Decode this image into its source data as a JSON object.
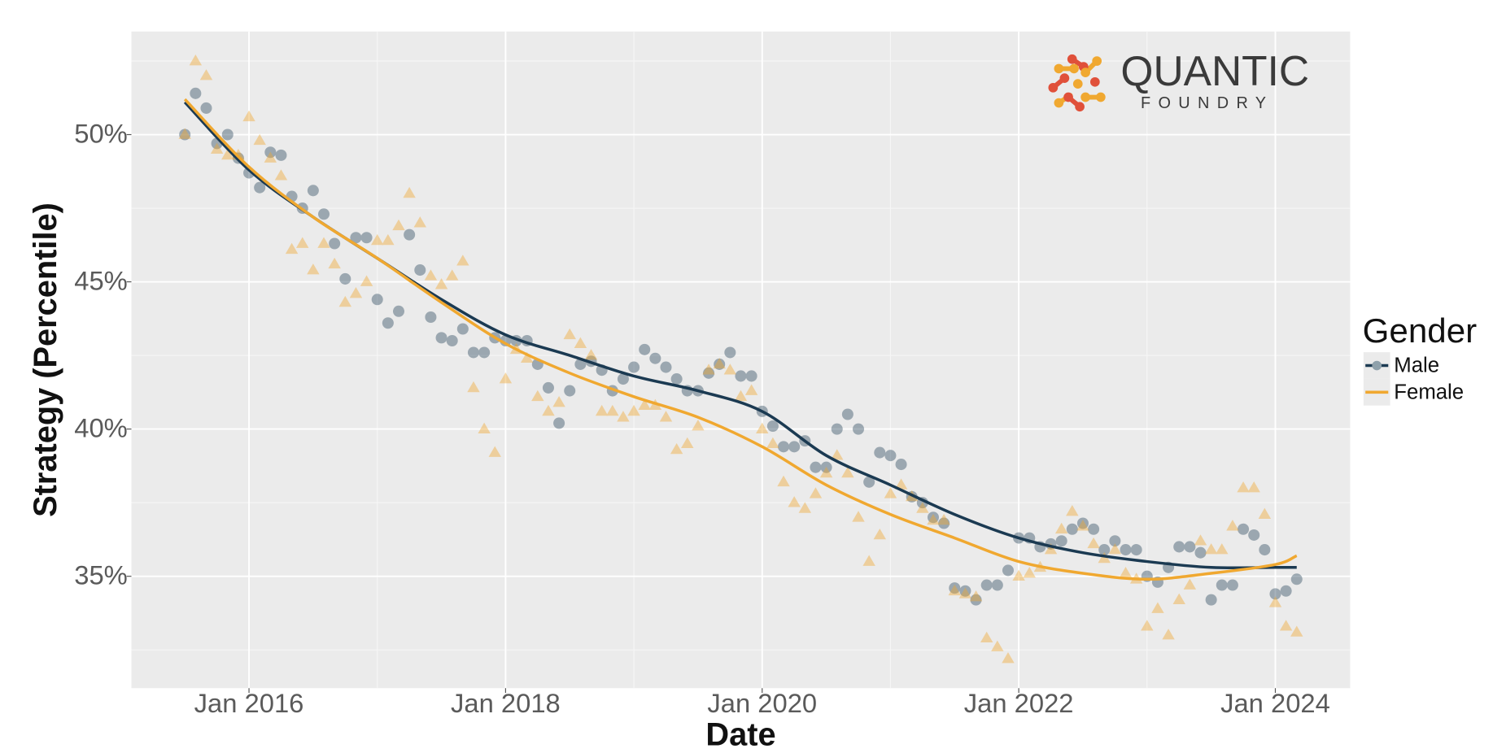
{
  "chart_data": {
    "type": "scatter",
    "x_label": "Date",
    "y_label": "Strategy (Percentile)",
    "legend_title": "Gender",
    "legend_position": "right",
    "grid": true,
    "logo": {
      "name": "QUANTIC",
      "tagline": "FOUNDRY"
    },
    "xlim": [
      "2015-02",
      "2024-08"
    ],
    "xticks": [
      {
        "value": "2016-01",
        "label": "Jan 2016"
      },
      {
        "value": "2018-01",
        "label": "Jan 2018"
      },
      {
        "value": "2020-01",
        "label": "Jan 2020"
      },
      {
        "value": "2022-01",
        "label": "Jan 2022"
      },
      {
        "value": "2024-01",
        "label": "Jan 2024"
      }
    ],
    "x_minor_ticks": [
      "2017-01",
      "2019-01",
      "2021-01",
      "2023-01"
    ],
    "ylim": [
      31.2,
      53.5
    ],
    "yticks": [
      {
        "value": 35,
        "label": "35%"
      },
      {
        "value": 40,
        "label": "40%"
      },
      {
        "value": 45,
        "label": "45%"
      },
      {
        "value": 50,
        "label": "50%"
      }
    ],
    "y_minor_ticks": [
      32.5,
      37.5,
      42.5,
      47.5,
      52.5
    ],
    "x": [
      "2015-07",
      "2015-08",
      "2015-09",
      "2015-10",
      "2015-11",
      "2015-12",
      "2016-01",
      "2016-02",
      "2016-03",
      "2016-04",
      "2016-05",
      "2016-06",
      "2016-07",
      "2016-08",
      "2016-09",
      "2016-10",
      "2016-11",
      "2016-12",
      "2017-01",
      "2017-02",
      "2017-03",
      "2017-04",
      "2017-05",
      "2017-06",
      "2017-07",
      "2017-08",
      "2017-09",
      "2017-10",
      "2017-11",
      "2017-12",
      "2018-01",
      "2018-02",
      "2018-03",
      "2018-04",
      "2018-05",
      "2018-06",
      "2018-07",
      "2018-08",
      "2018-09",
      "2018-10",
      "2018-11",
      "2018-12",
      "2019-01",
      "2019-02",
      "2019-03",
      "2019-04",
      "2019-05",
      "2019-06",
      "2019-07",
      "2019-08",
      "2019-09",
      "2019-10",
      "2019-11",
      "2019-12",
      "2020-01",
      "2020-02",
      "2020-03",
      "2020-04",
      "2020-05",
      "2020-06",
      "2020-07",
      "2020-08",
      "2020-09",
      "2020-10",
      "2020-11",
      "2020-12",
      "2021-01",
      "2021-02",
      "2021-03",
      "2021-04",
      "2021-05",
      "2021-06",
      "2021-07",
      "2021-08",
      "2021-09",
      "2021-10",
      "2021-11",
      "2021-12",
      "2022-01",
      "2022-02",
      "2022-03",
      "2022-04",
      "2022-05",
      "2022-06",
      "2022-07",
      "2022-08",
      "2022-09",
      "2022-10",
      "2022-11",
      "2022-12",
      "2023-01",
      "2023-02",
      "2023-03",
      "2023-04",
      "2023-05",
      "2023-06",
      "2023-07",
      "2023-08",
      "2023-09",
      "2023-10",
      "2023-11",
      "2023-12",
      "2024-01",
      "2024-02",
      "2024-03"
    ],
    "fit_x": [
      "2015-07",
      "2016-01",
      "2016-07",
      "2017-01",
      "2017-07",
      "2018-01",
      "2018-07",
      "2019-01",
      "2019-07",
      "2020-01",
      "2020-07",
      "2021-01",
      "2021-07",
      "2022-01",
      "2022-07",
      "2023-01",
      "2023-07",
      "2024-01",
      "2024-03"
    ],
    "series": [
      {
        "name": "Male",
        "color": "#1b3a52",
        "marker": "circle",
        "values": [
          50.0,
          51.4,
          50.9,
          49.7,
          50.0,
          49.2,
          48.7,
          48.2,
          49.4,
          49.3,
          47.9,
          47.5,
          48.1,
          47.3,
          46.3,
          45.1,
          46.5,
          46.5,
          44.4,
          43.6,
          44.0,
          46.6,
          45.4,
          43.8,
          43.1,
          43.0,
          43.4,
          42.6,
          42.6,
          43.1,
          43.0,
          43.0,
          43.0,
          42.2,
          41.4,
          40.2,
          41.3,
          42.2,
          42.3,
          42.0,
          41.3,
          41.7,
          42.1,
          42.7,
          42.4,
          42.1,
          41.7,
          41.3,
          41.3,
          41.9,
          42.2,
          42.6,
          41.8,
          41.8,
          40.6,
          40.1,
          39.4,
          39.4,
          39.6,
          38.7,
          38.7,
          40.0,
          40.5,
          40.0,
          38.2,
          39.2,
          39.1,
          38.8,
          37.7,
          37.5,
          37.0,
          36.8,
          34.6,
          34.5,
          34.2,
          34.7,
          34.7,
          35.2,
          36.3,
          36.3,
          36.0,
          36.1,
          36.2,
          36.6,
          36.8,
          36.6,
          35.9,
          36.2,
          35.9,
          35.9,
          35.0,
          34.8,
          35.3,
          36.0,
          36.0,
          35.8,
          34.2,
          34.7,
          34.7,
          36.6,
          36.4,
          35.9,
          34.4,
          34.5,
          34.9
        ],
        "fit_values": [
          51.1,
          48.8,
          47.2,
          45.8,
          44.4,
          43.2,
          42.5,
          41.8,
          41.3,
          40.6,
          39.1,
          38.1,
          37.1,
          36.3,
          35.8,
          35.5,
          35.3,
          35.3,
          35.3
        ]
      },
      {
        "name": "Female",
        "color": "#f0a830",
        "marker": "triangle",
        "values": [
          50.0,
          52.5,
          52.0,
          49.5,
          49.3,
          49.3,
          50.6,
          49.8,
          49.2,
          48.6,
          46.1,
          46.3,
          45.4,
          46.3,
          45.6,
          44.3,
          44.6,
          45.0,
          46.4,
          46.4,
          46.9,
          48.0,
          47.0,
          45.2,
          44.9,
          45.2,
          45.7,
          41.4,
          40.0,
          39.2,
          41.7,
          42.7,
          42.4,
          41.1,
          40.6,
          40.9,
          43.2,
          42.9,
          42.5,
          40.6,
          40.6,
          40.4,
          40.6,
          40.8,
          40.8,
          40.4,
          39.3,
          39.5,
          40.1,
          42.0,
          42.2,
          42.0,
          41.1,
          41.3,
          40.0,
          39.5,
          38.2,
          37.5,
          37.3,
          37.8,
          38.5,
          39.1,
          38.5,
          37.0,
          35.5,
          36.4,
          37.8,
          38.1,
          37.7,
          37.3,
          36.9,
          36.9,
          34.5,
          34.4,
          34.3,
          32.9,
          32.6,
          32.2,
          35.0,
          35.1,
          35.3,
          35.9,
          36.6,
          37.2,
          36.7,
          36.1,
          35.6,
          35.9,
          35.1,
          34.9,
          33.3,
          33.9,
          33.0,
          34.2,
          34.7,
          36.2,
          35.9,
          35.9,
          36.7,
          38.0,
          38.0,
          37.1,
          34.1,
          33.3,
          33.1
        ],
        "fit_values": [
          51.2,
          48.9,
          47.2,
          45.8,
          44.3,
          42.9,
          41.9,
          41.1,
          40.4,
          39.4,
          38.1,
          37.1,
          36.3,
          35.5,
          35.1,
          34.9,
          35.1,
          35.4,
          35.7
        ]
      }
    ]
  }
}
